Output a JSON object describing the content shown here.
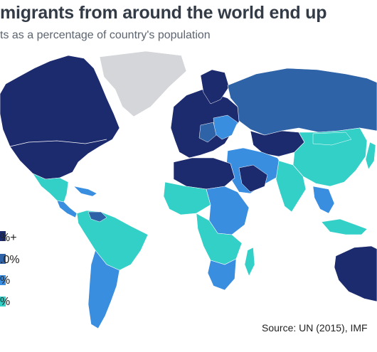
{
  "title": "migrants from around the world end up",
  "subtitle": "ts as a percentage of country's population",
  "legend": {
    "items": [
      {
        "label": "%+",
        "color": "#1c2a6e"
      },
      {
        "label": ".0%",
        "color": "#2f63a8"
      },
      {
        "label": "%",
        "color": "#3a8ee0"
      },
      {
        "label": "%",
        "color": "#33d0c8"
      }
    ],
    "no_data_color": "#d4d6d9"
  },
  "source": "Source: UN (2015), IMF",
  "colors": {
    "ocean": "#ffffff",
    "border": "#ffffff"
  }
}
